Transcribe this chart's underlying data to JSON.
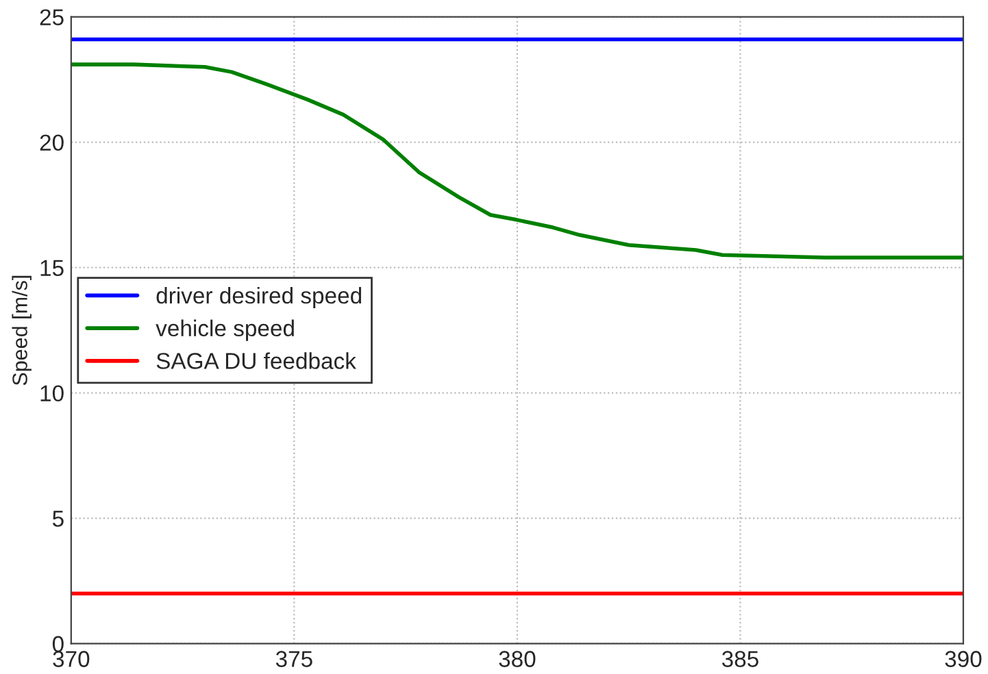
{
  "chart_data": {
    "type": "line",
    "ylabel": "Speed [m/s]",
    "xlim": [
      370,
      390
    ],
    "ylim": [
      0,
      25
    ],
    "xticks": [
      370,
      375,
      380,
      385,
      390
    ],
    "yticks": [
      0,
      5,
      10,
      15,
      20,
      25
    ],
    "grid": true,
    "legend": "center left",
    "line_style": "solid",
    "marker": "none",
    "series": [
      {
        "name": "driver desired speed",
        "color": "#0000ff",
        "x": [
          370,
          390
        ],
        "values": [
          24.1,
          24.1
        ]
      },
      {
        "name": "vehicle speed",
        "color": "#008000",
        "x": [
          370,
          371.4,
          373.0,
          373.6,
          374.4,
          375.3,
          376.1,
          377.0,
          377.8,
          378.7,
          379.4,
          380.0,
          380.8,
          381.4,
          382.5,
          384.0,
          384.6,
          386.9,
          388.3,
          389.6,
          390
        ],
        "values": [
          23.1,
          23.1,
          23.0,
          22.8,
          22.3,
          21.7,
          21.1,
          20.1,
          18.8,
          17.8,
          17.1,
          16.9,
          16.6,
          16.3,
          15.9,
          15.7,
          15.5,
          15.4,
          15.4,
          15.4,
          15.4
        ]
      },
      {
        "name": "SAGA DU feedback",
        "color": "#ff0000",
        "x": [
          370,
          390
        ],
        "values": [
          2.0,
          2.0
        ]
      }
    ]
  }
}
